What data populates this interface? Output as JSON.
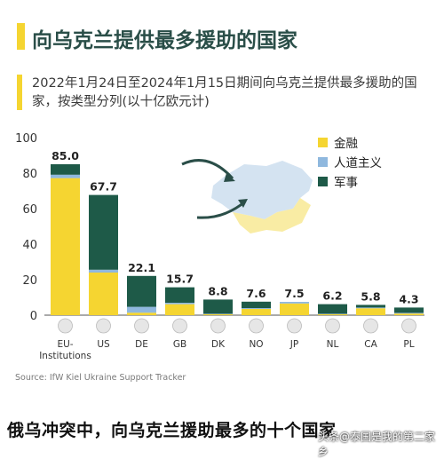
{
  "header": {
    "title": "向乌克兰提供最多援助的国家",
    "subtitle": "2022年1月24日至2024年1月15日期间向乌克兰提供最多援助的国家，按类型分列(以十亿欧元计)"
  },
  "source": "Source: IfW Kiel Ukraine Support Tracker",
  "footer": {
    "caption": "俄乌冲突中，向乌克兰援助最多的十个国家",
    "watermark": "头条@泰国是我的第二家乡"
  },
  "colors": {
    "financial": "#f5d531",
    "humanitarian": "#8fb8de",
    "military": "#1e5a48",
    "title": "#2a4e48"
  },
  "chart_data": {
    "type": "bar",
    "stacked": true,
    "ylim": [
      0,
      100
    ],
    "yticks": [
      0,
      20,
      40,
      60,
      80,
      100
    ],
    "grid": false,
    "legend_position": "top-right",
    "categories": [
      "EU-Institutions",
      "US",
      "DE",
      "GB",
      "DK",
      "NO",
      "JP",
      "NL",
      "CA",
      "PL"
    ],
    "category_labels": [
      [
        "EU-",
        "Institutions"
      ],
      [
        "US"
      ],
      [
        "DE"
      ],
      [
        "GB"
      ],
      [
        "DK"
      ],
      [
        "NO"
      ],
      [
        "JP"
      ],
      [
        "NL"
      ],
      [
        "CA"
      ],
      [
        "PL"
      ]
    ],
    "flag_icons": [
      "eu-flag-icon",
      "us-flag-icon",
      "de-flag-icon",
      "gb-flag-icon",
      "dk-flag-icon",
      "no-flag-icon",
      "jp-flag-icon",
      "nl-flag-icon",
      "ca-flag-icon",
      "pl-flag-icon"
    ],
    "totals": [
      85.0,
      67.7,
      22.1,
      15.7,
      8.8,
      7.6,
      7.5,
      6.2,
      5.8,
      4.3
    ],
    "total_labels": [
      "85.0",
      "67.7",
      "22.1",
      "15.7",
      "8.8",
      "7.6",
      "7.5",
      "6.2",
      "5.8",
      "4.3"
    ],
    "series": [
      {
        "name": "金融",
        "color": "#f5d531",
        "values": [
          77.2,
          24.0,
          1.4,
          6.2,
          0.5,
          3.5,
          6.6,
          0.5,
          3.9,
          0.9
        ]
      },
      {
        "name": "人道主义",
        "color": "#8fb8de",
        "values": [
          1.9,
          1.6,
          3.3,
          0.8,
          0.3,
          0.5,
          0.9,
          0.3,
          0.4,
          0.4
        ]
      },
      {
        "name": "军事",
        "color": "#1e5a48",
        "values": [
          5.9,
          42.1,
          17.4,
          8.7,
          8.0,
          3.6,
          0.0,
          5.4,
          1.5,
          3.0
        ]
      }
    ]
  }
}
